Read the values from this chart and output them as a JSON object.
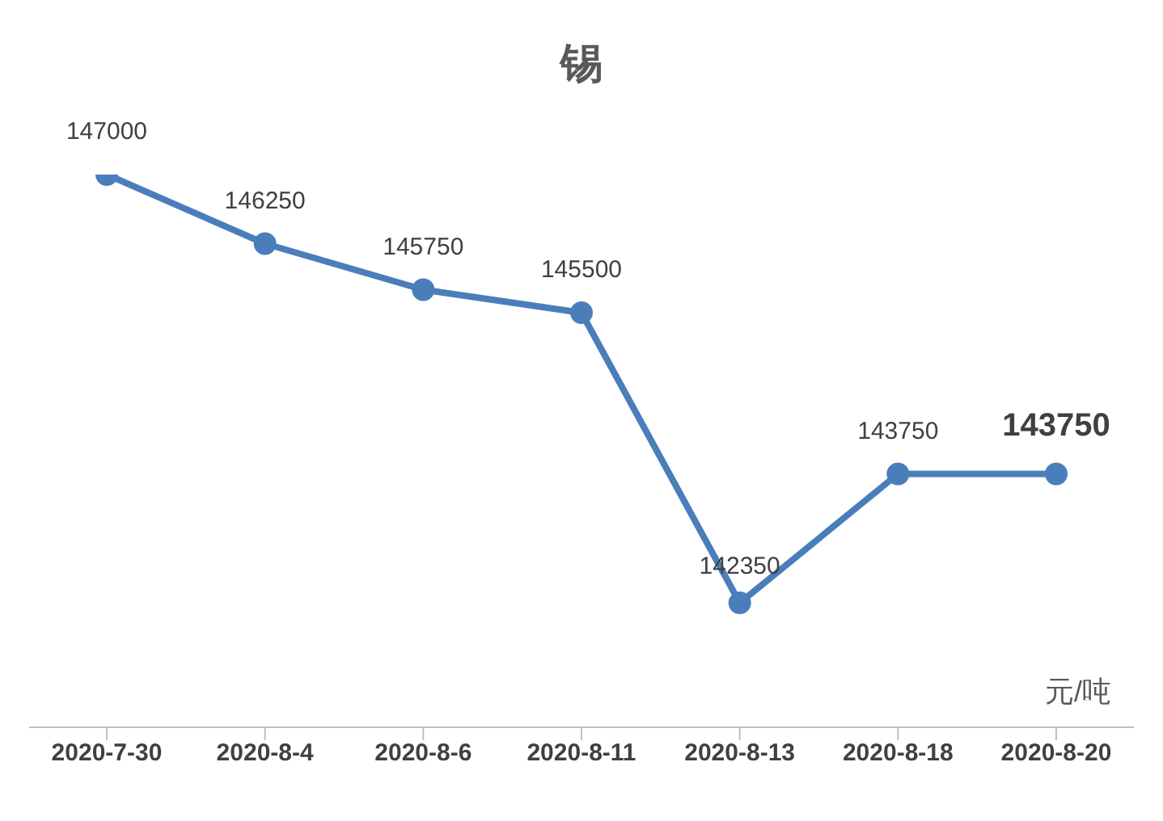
{
  "chart_data": {
    "type": "line",
    "title": "锡",
    "categories": [
      "2020-7-30",
      "2020-8-4",
      "2020-8-6",
      "2020-8-11",
      "2020-8-13",
      "2020-8-18",
      "2020-8-20"
    ],
    "series": [
      {
        "color": "#4a7ebb",
        "values": [
          147000,
          146250,
          145750,
          145500,
          142350,
          143750,
          143750
        ]
      }
    ],
    "tick_labels": "x",
    "data_labels": true,
    "marker": "circle",
    "line_style": "solid",
    "grid": false,
    "legend": false,
    "annotations": [
      "元/吨"
    ]
  }
}
